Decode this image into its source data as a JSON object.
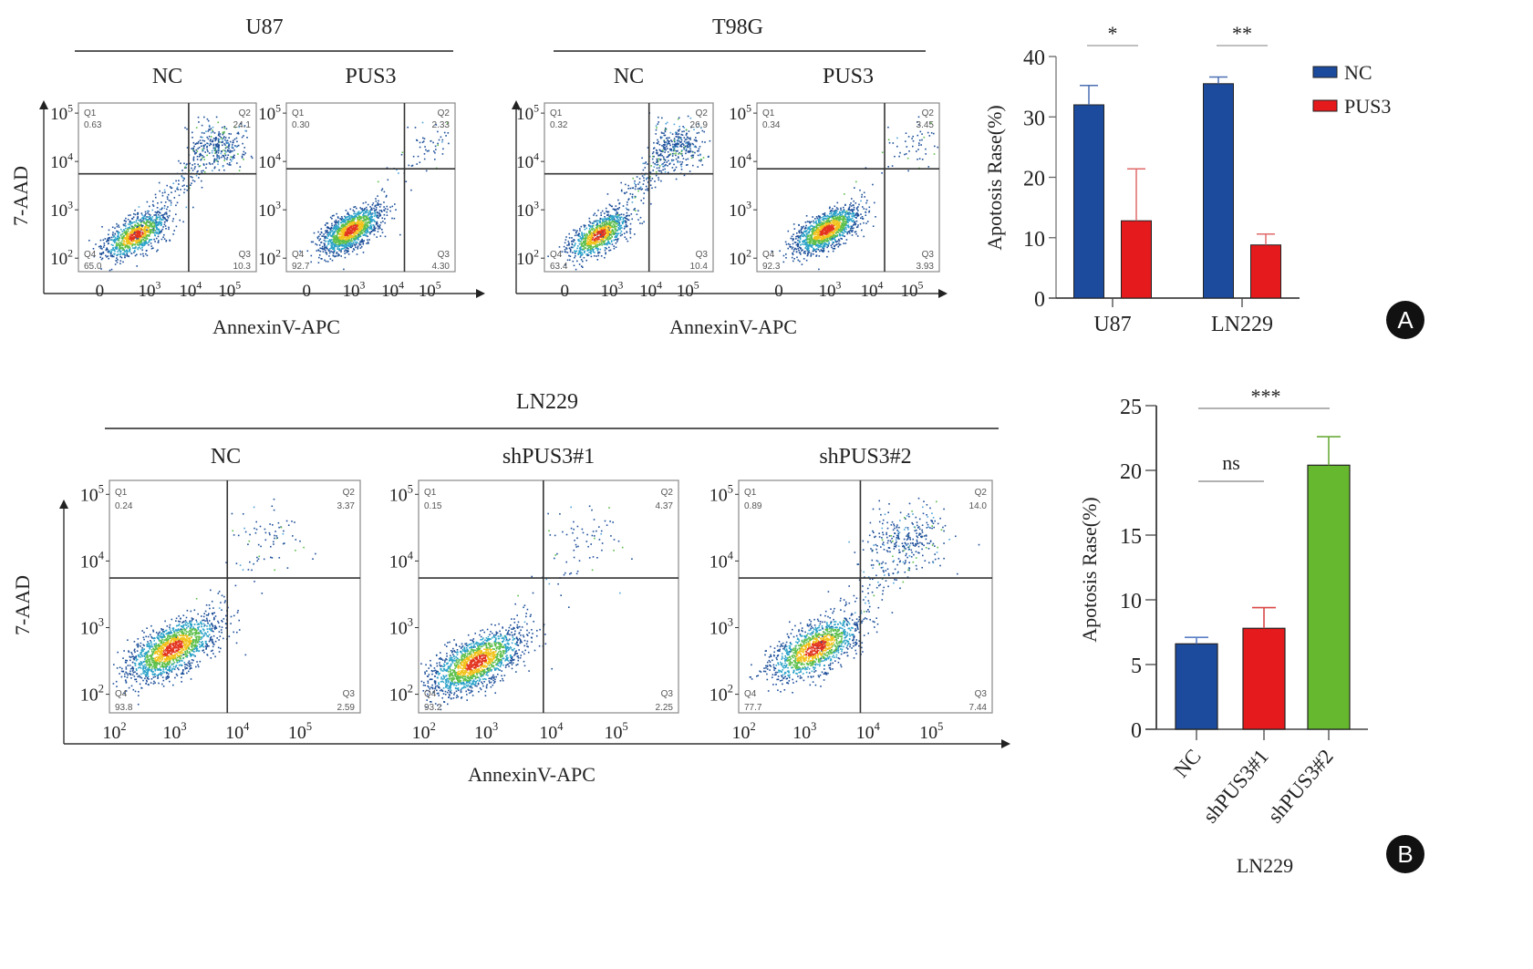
{
  "figure": {
    "panel_labels": [
      "A",
      "B"
    ]
  },
  "flow_axes": {
    "y_label": "7-AAD",
    "x_label": "AnnexinV-APC",
    "y_ticks": [
      "10^2",
      "10^3",
      "10^4",
      "10^5"
    ],
    "x_ticks_top": [
      "0",
      "10^3",
      "10^4",
      "10^5"
    ],
    "x_ticks_bottom": [
      "10^2",
      "10^3",
      "10^4",
      "10^5"
    ],
    "quadrant_names": [
      "Q1",
      "Q2",
      "Q3",
      "Q4"
    ]
  },
  "flow_groups": [
    {
      "cell_line": "U87",
      "panels": [
        {
          "condition": "NC",
          "Q1": "0.63",
          "Q2": "24.1",
          "Q3": "10.3",
          "Q4": "65.0",
          "apoptosis_level": "high"
        },
        {
          "condition": "PUS3",
          "Q1": "0.30",
          "Q2": "2.33",
          "Q3": "4.30",
          "Q4": "92.7",
          "apoptosis_level": "low"
        }
      ]
    },
    {
      "cell_line": "T98G",
      "panels": [
        {
          "condition": "NC",
          "Q1": "0.32",
          "Q2": "26.9",
          "Q3": "10.4",
          "Q4": "63.4",
          "apoptosis_level": "high"
        },
        {
          "condition": "PUS3",
          "Q1": "0.34",
          "Q2": "3.45",
          "Q3": "3.93",
          "Q4": "92.3",
          "apoptosis_level": "low"
        }
      ]
    },
    {
      "cell_line": "LN229",
      "panels": [
        {
          "condition": "NC",
          "Q1": "0.24",
          "Q2": "3.37",
          "Q3": "2.59",
          "Q4": "93.8",
          "apoptosis_level": "low"
        },
        {
          "condition": "shPUS3#1",
          "Q1": "0.15",
          "Q2": "4.37",
          "Q3": "2.25",
          "Q4": "93.2",
          "apoptosis_level": "low"
        },
        {
          "condition": "shPUS3#2",
          "Q1": "0.89",
          "Q2": "14.0",
          "Q3": "7.44",
          "Q4": "77.7",
          "apoptosis_level": "mid"
        }
      ]
    }
  ],
  "colors": {
    "NC": "#1c4a9c",
    "PUS3": "#e41a1c",
    "shPUS3#2": "#66b82e",
    "badge": "#111111"
  },
  "chart_data": [
    {
      "type": "bar",
      "title": "",
      "xlabel": "",
      "ylabel": "Apotosis Rase(%)",
      "ylim": [
        0,
        40
      ],
      "yticks": [
        0,
        10,
        20,
        30,
        40
      ],
      "categories": [
        "U87",
        "LN229"
      ],
      "legend_position": "top-right",
      "series": [
        {
          "name": "NC",
          "values": [
            32.0,
            35.5
          ],
          "errors": [
            3.2,
            1.1
          ]
        },
        {
          "name": "PUS3",
          "values": [
            12.8,
            8.8
          ],
          "errors": [
            8.6,
            1.8
          ]
        }
      ],
      "significance": [
        "*",
        "**"
      ]
    },
    {
      "type": "bar",
      "title": "",
      "xlabel": "LN229",
      "ylabel": "Apotosis Rase(%)",
      "ylim": [
        0,
        25
      ],
      "yticks": [
        0,
        5,
        10,
        15,
        20,
        25
      ],
      "categories": [
        "NC",
        "shPUS3#1",
        "shPUS3#2"
      ],
      "series": [
        {
          "name": "Apoptosis",
          "values": [
            6.6,
            7.8,
            20.4
          ],
          "errors": [
            0.5,
            1.6,
            2.2
          ]
        }
      ],
      "significance": [
        {
          "label": "ns",
          "between": [
            "NC",
            "shPUS3#1"
          ]
        },
        {
          "label": "***",
          "between": [
            "NC",
            "shPUS3#2"
          ]
        }
      ]
    }
  ]
}
